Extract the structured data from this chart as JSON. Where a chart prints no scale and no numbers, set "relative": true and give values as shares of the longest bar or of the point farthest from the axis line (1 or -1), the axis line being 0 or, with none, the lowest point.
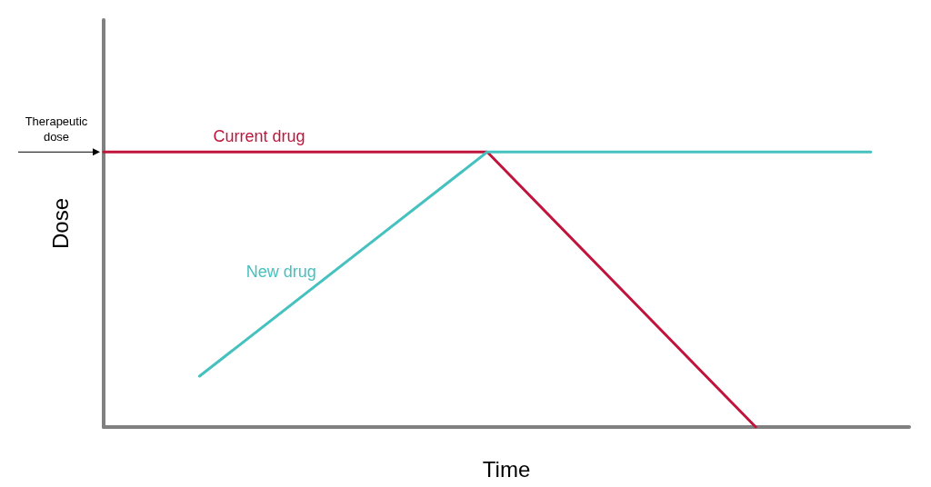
{
  "chart_data": {
    "type": "line",
    "relative": true,
    "xlabel": "Time",
    "ylabel": "Dose",
    "grid": false,
    "legend": false,
    "marker": "none",
    "line_style": "solid",
    "annotations": [
      "Therapeutic dose"
    ],
    "categories": [
      null,
      null,
      null,
      null,
      null,
      null,
      null,
      null,
      null,
      null,
      null,
      null,
      null,
      null,
      null,
      null,
      null,
      null,
      null,
      null,
      null,
      null,
      null,
      null,
      null,
      null,
      null,
      null,
      null,
      null,
      null,
      null,
      null,
      null,
      null,
      null,
      null,
      null,
      null,
      null,
      null,
      null,
      null
    ],
    "series": [
      {
        "name": "Current drug",
        "color": "#c0143c",
        "values": [
          1,
          null,
          null,
          null,
          null,
          null,
          null,
          null,
          null,
          null,
          null,
          null,
          null,
          null,
          null,
          null,
          null,
          null,
          null,
          null,
          1,
          null,
          null,
          null,
          null,
          null,
          null,
          null,
          null,
          null,
          null,
          null,
          null,
          null,
          0,
          null,
          null,
          null,
          null,
          null,
          null,
          null,
          null
        ]
      },
      {
        "name": "New drug",
        "color": "#45c1bf",
        "values": [
          null,
          null,
          null,
          null,
          null,
          0.185,
          null,
          null,
          null,
          null,
          null,
          null,
          null,
          null,
          null,
          null,
          null,
          null,
          null,
          null,
          1,
          null,
          null,
          null,
          null,
          null,
          null,
          null,
          null,
          null,
          null,
          null,
          null,
          null,
          null,
          null,
          null,
          null,
          null,
          null,
          1,
          null,
          null
        ]
      }
    ]
  }
}
